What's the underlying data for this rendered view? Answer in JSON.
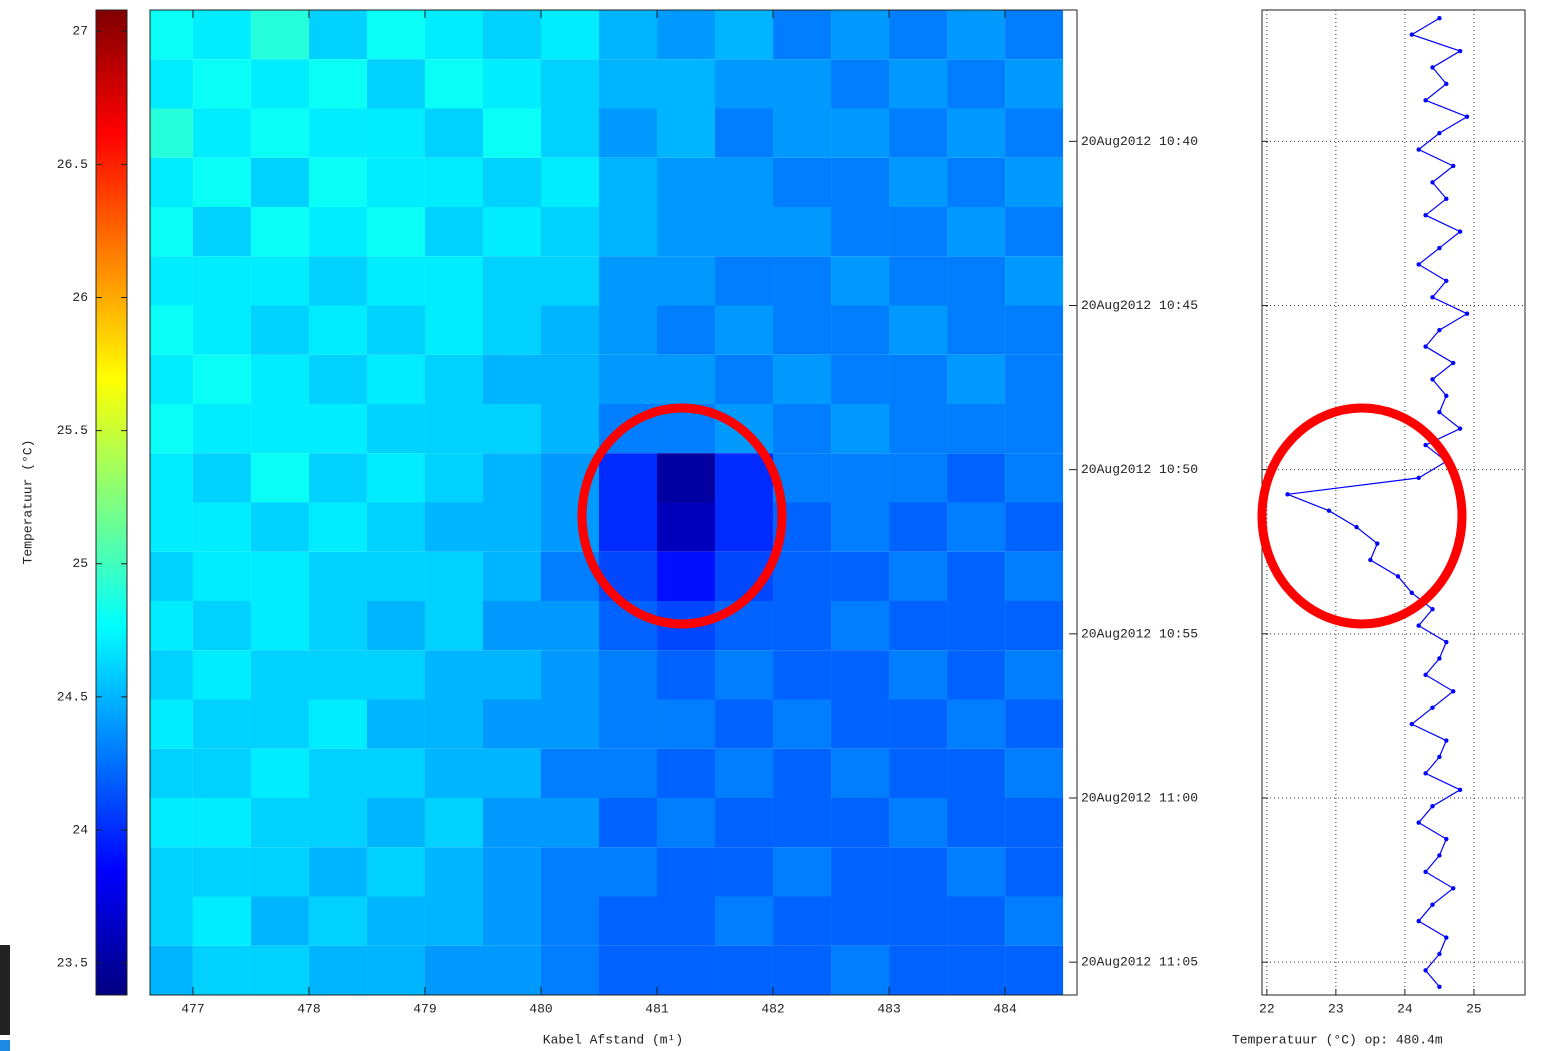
{
  "chart_data": [
    {
      "type": "heatmap",
      "xlabel": "Kabel Afstand (m¹)",
      "colorbar_label": "Temperatuur (°C)",
      "colormap": "jet",
      "x": [
        476.75,
        477.25,
        477.75,
        478.25,
        478.75,
        479.25,
        479.75,
        480.25,
        480.75,
        481.25,
        481.75,
        482.25,
        482.75,
        483.25,
        483.75,
        484.25
      ],
      "y": [
        636.75,
        638.25,
        639.75,
        641.25,
        642.75,
        644.25,
        645.75,
        647.25,
        648.75,
        650.25,
        651.75,
        653.25,
        654.75,
        656.25,
        657.75,
        659.25,
        660.75,
        662.25,
        663.75,
        665.25
      ],
      "z": [
        [
          24.8,
          24.7,
          24.9,
          24.6,
          24.8,
          24.7,
          24.6,
          24.7,
          24.5,
          24.4,
          24.5,
          24.3,
          24.4,
          24.3,
          24.4,
          24.3
        ],
        [
          24.7,
          24.8,
          24.7,
          24.8,
          24.6,
          24.8,
          24.7,
          24.6,
          24.5,
          24.5,
          24.4,
          24.4,
          24.3,
          24.4,
          24.3,
          24.4
        ],
        [
          24.9,
          24.7,
          24.8,
          24.7,
          24.7,
          24.6,
          24.8,
          24.6,
          24.4,
          24.5,
          24.3,
          24.4,
          24.4,
          24.3,
          24.4,
          24.3
        ],
        [
          24.7,
          24.8,
          24.6,
          24.8,
          24.7,
          24.7,
          24.6,
          24.7,
          24.5,
          24.4,
          24.4,
          24.3,
          24.3,
          24.4,
          24.3,
          24.4
        ],
        [
          24.8,
          24.6,
          24.8,
          24.7,
          24.8,
          24.6,
          24.7,
          24.6,
          24.5,
          24.4,
          24.4,
          24.4,
          24.3,
          24.3,
          24.4,
          24.3
        ],
        [
          24.7,
          24.7,
          24.7,
          24.6,
          24.7,
          24.7,
          24.6,
          24.6,
          24.4,
          24.4,
          24.3,
          24.3,
          24.4,
          24.3,
          24.3,
          24.4
        ],
        [
          24.8,
          24.7,
          24.6,
          24.7,
          24.6,
          24.7,
          24.6,
          24.5,
          24.4,
          24.3,
          24.4,
          24.3,
          24.3,
          24.4,
          24.3,
          24.3
        ],
        [
          24.7,
          24.8,
          24.7,
          24.6,
          24.7,
          24.6,
          24.5,
          24.5,
          24.4,
          24.4,
          24.3,
          24.4,
          24.3,
          24.3,
          24.4,
          24.3
        ],
        [
          24.8,
          24.7,
          24.7,
          24.7,
          24.6,
          24.6,
          24.6,
          24.5,
          24.3,
          24.3,
          24.4,
          24.3,
          24.4,
          24.3,
          24.3,
          24.3
        ],
        [
          24.7,
          24.6,
          24.8,
          24.6,
          24.7,
          24.6,
          24.5,
          24.4,
          24.0,
          23.5,
          24.0,
          24.3,
          24.3,
          24.3,
          24.2,
          24.3
        ],
        [
          24.7,
          24.7,
          24.6,
          24.7,
          24.6,
          24.5,
          24.5,
          24.4,
          24.0,
          23.6,
          24.0,
          24.2,
          24.3,
          24.2,
          24.3,
          24.2
        ],
        [
          24.6,
          24.7,
          24.7,
          24.6,
          24.6,
          24.6,
          24.5,
          24.3,
          24.1,
          23.9,
          24.1,
          24.2,
          24.2,
          24.3,
          24.2,
          24.3
        ],
        [
          24.7,
          24.6,
          24.7,
          24.6,
          24.5,
          24.6,
          24.4,
          24.4,
          24.2,
          24.1,
          24.2,
          24.2,
          24.3,
          24.2,
          24.2,
          24.2
        ],
        [
          24.6,
          24.7,
          24.6,
          24.6,
          24.6,
          24.5,
          24.5,
          24.4,
          24.3,
          24.2,
          24.3,
          24.2,
          24.2,
          24.3,
          24.2,
          24.3
        ],
        [
          24.7,
          24.6,
          24.6,
          24.7,
          24.5,
          24.5,
          24.4,
          24.4,
          24.3,
          24.3,
          24.2,
          24.3,
          24.2,
          24.2,
          24.3,
          24.2
        ],
        [
          24.6,
          24.6,
          24.7,
          24.6,
          24.6,
          24.5,
          24.5,
          24.3,
          24.3,
          24.2,
          24.3,
          24.2,
          24.3,
          24.2,
          24.2,
          24.3
        ],
        [
          24.7,
          24.7,
          24.6,
          24.6,
          24.5,
          24.6,
          24.4,
          24.4,
          24.2,
          24.3,
          24.2,
          24.2,
          24.2,
          24.3,
          24.2,
          24.2
        ],
        [
          24.6,
          24.6,
          24.6,
          24.5,
          24.6,
          24.5,
          24.4,
          24.3,
          24.3,
          24.2,
          24.2,
          24.3,
          24.2,
          24.2,
          24.3,
          24.2
        ],
        [
          24.6,
          24.7,
          24.5,
          24.6,
          24.5,
          24.5,
          24.4,
          24.3,
          24.2,
          24.2,
          24.3,
          24.2,
          24.2,
          24.2,
          24.2,
          24.3
        ],
        [
          24.5,
          24.6,
          24.6,
          24.5,
          24.5,
          24.4,
          24.4,
          24.3,
          24.2,
          24.2,
          24.2,
          24.2,
          24.3,
          24.2,
          24.2,
          24.2
        ]
      ],
      "xlim": [
        476.63,
        484.62
      ],
      "xticks": [
        477,
        478,
        479,
        480,
        481,
        482,
        483,
        484
      ],
      "ylim": [
        666,
        636
      ],
      "clim": [
        23.38,
        27.08
      ],
      "cticks": [
        23.5,
        24,
        24.5,
        25,
        25.5,
        26,
        26.5,
        27
      ]
    },
    {
      "type": "line",
      "xlabel": "Temperatuur (°C) op: 480.4m",
      "color": "#0000ff",
      "y": [
        636.25,
        636.75,
        637.25,
        637.75,
        638.25,
        638.75,
        639.25,
        639.75,
        640.25,
        640.75,
        641.25,
        641.75,
        642.25,
        642.75,
        643.25,
        643.75,
        644.25,
        644.75,
        645.25,
        645.75,
        646.25,
        646.75,
        647.25,
        647.75,
        648.25,
        648.75,
        649.25,
        649.75,
        650.25,
        650.75,
        651.25,
        651.75,
        652.25,
        652.75,
        653.25,
        653.75,
        654.25,
        654.75,
        655.25,
        655.75,
        656.25,
        656.75,
        657.25,
        657.75,
        658.25,
        658.75,
        659.25,
        659.75,
        660.25,
        660.75,
        661.25,
        661.75,
        662.25,
        662.75,
        663.25,
        663.75,
        664.25,
        664.75,
        665.25,
        665.75
      ],
      "values": [
        24.5,
        24.1,
        24.8,
        24.4,
        24.6,
        24.3,
        24.9,
        24.5,
        24.2,
        24.7,
        24.4,
        24.6,
        24.3,
        24.8,
        24.5,
        24.2,
        24.6,
        24.4,
        24.9,
        24.5,
        24.3,
        24.7,
        24.4,
        24.6,
        24.5,
        24.8,
        24.3,
        24.6,
        24.2,
        22.3,
        22.9,
        23.3,
        23.6,
        23.5,
        23.9,
        24.1,
        24.4,
        24.2,
        24.6,
        24.5,
        24.3,
        24.7,
        24.4,
        24.1,
        24.6,
        24.5,
        24.3,
        24.8,
        24.4,
        24.2,
        24.6,
        24.5,
        24.3,
        24.7,
        24.4,
        24.2,
        24.6,
        24.5,
        24.3,
        24.5
      ],
      "xlim": [
        21.93,
        25.74
      ],
      "xticks": [
        22,
        23,
        24,
        25
      ],
      "ylim": [
        666,
        636
      ],
      "yticks": [
        {
          "value": 640,
          "label": "20Aug2012 10:40"
        },
        {
          "value": 645,
          "label": "20Aug2012 10:45"
        },
        {
          "value": 650,
          "label": "20Aug2012 10:50"
        },
        {
          "value": 655,
          "label": "20Aug2012 10:55"
        },
        {
          "value": 660,
          "label": "20Aug2012 11:00"
        },
        {
          "value": 665,
          "label": "20Aug2012 11:05"
        }
      ],
      "grid": true
    }
  ]
}
